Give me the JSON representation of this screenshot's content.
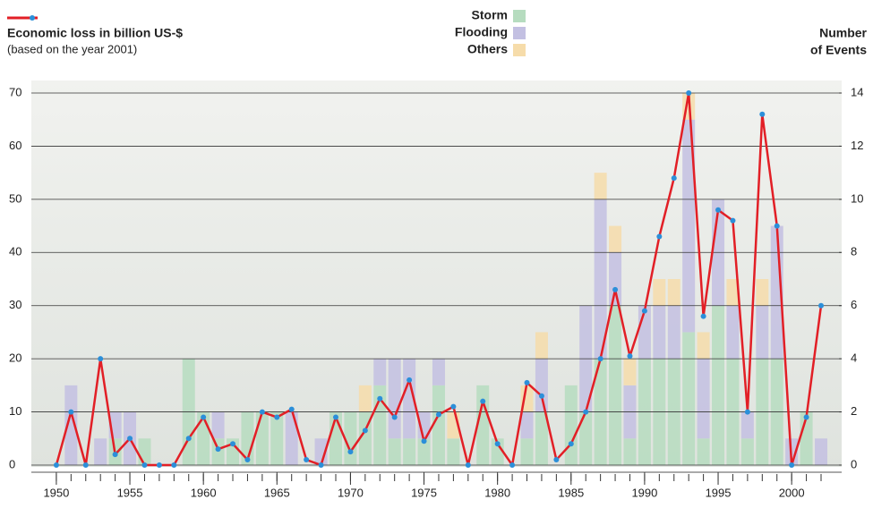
{
  "chart_data": {
    "type": "bar-line",
    "title": "Economic loss in billion US-$",
    "subtitle": "(based on the year 2001)",
    "y2_label": [
      "Number",
      "of Events"
    ],
    "x": [
      1950,
      1951,
      1952,
      1953,
      1954,
      1955,
      1956,
      1957,
      1958,
      1959,
      1960,
      1961,
      1962,
      1963,
      1964,
      1965,
      1966,
      1967,
      1968,
      1969,
      1970,
      1971,
      1972,
      1973,
      1974,
      1975,
      1976,
      1977,
      1978,
      1979,
      1980,
      1981,
      1982,
      1983,
      1984,
      1985,
      1986,
      1987,
      1988,
      1989,
      1990,
      1991,
      1992,
      1993,
      1994,
      1995,
      1996,
      1997,
      1998,
      1999,
      2000,
      2001,
      2002
    ],
    "xlim": [
      1948.3,
      2003.4
    ],
    "xticks": [
      1950,
      1955,
      1960,
      1965,
      1970,
      1975,
      1980,
      1985,
      1990,
      1995,
      2000
    ],
    "ylim": [
      0,
      70
    ],
    "yticks": [
      0,
      10,
      20,
      30,
      40,
      50,
      60,
      70
    ],
    "y2lim": [
      0,
      14
    ],
    "y2ticks": [
      0,
      2,
      4,
      6,
      8,
      10,
      12,
      14
    ],
    "grid": true,
    "series": [
      {
        "name": "Storm",
        "color": "#b6dcbf",
        "axis": "y2",
        "values": [
          0,
          0,
          0,
          0,
          1,
          0,
          1,
          0,
          0,
          4,
          2,
          1,
          1,
          2,
          2,
          2,
          0,
          0,
          0,
          2,
          2,
          2,
          3,
          1,
          1,
          1,
          3,
          1,
          0,
          3,
          1,
          0,
          1,
          2,
          0,
          3,
          2,
          4,
          6,
          1,
          4,
          4,
          4,
          5,
          1,
          6,
          4,
          1,
          4,
          4,
          0,
          2,
          0
        ]
      },
      {
        "name": "Flooding",
        "color": "#c3c0e2",
        "axis": "y2",
        "values": [
          0,
          3,
          0,
          1,
          1,
          2,
          0,
          0,
          0,
          0,
          0,
          1,
          0,
          0,
          0,
          0,
          2,
          0,
          1,
          0,
          0,
          0,
          1,
          3,
          3,
          1,
          1,
          0,
          0,
          0,
          0,
          0,
          1,
          2,
          0,
          0,
          4,
          6,
          2,
          2,
          2,
          2,
          2,
          8,
          3,
          4,
          2,
          1,
          2,
          5,
          1,
          0,
          1
        ]
      },
      {
        "name": "Others",
        "color": "#f6dcaa",
        "axis": "y2",
        "values": [
          0,
          0,
          0,
          0,
          0,
          0,
          0,
          0,
          0,
          0,
          0,
          0,
          0,
          0,
          0,
          0,
          0,
          0,
          0,
          0,
          0,
          1,
          0,
          0,
          0,
          0,
          0,
          1,
          0,
          0,
          0,
          0,
          1,
          1,
          0,
          0,
          0,
          1,
          1,
          1,
          0,
          1,
          1,
          1,
          1,
          0,
          1,
          0,
          1,
          0,
          0,
          0,
          0
        ]
      },
      {
        "name": "Economic loss",
        "color": "#e21f26",
        "marker_color": "#2b8fd9",
        "values": [
          0,
          10,
          0,
          20,
          2,
          5,
          0,
          0,
          0,
          5,
          9,
          3,
          4,
          1,
          10,
          9,
          10.5,
          1,
          0,
          9,
          2.5,
          6.5,
          12.5,
          9,
          16,
          4.5,
          9.5,
          11,
          0,
          12,
          4,
          0,
          15.5,
          13,
          1,
          4,
          10,
          20,
          33,
          20.5,
          29,
          43,
          54,
          70,
          28,
          48,
          46,
          10,
          66,
          45,
          0,
          9,
          30
        ]
      }
    ]
  }
}
